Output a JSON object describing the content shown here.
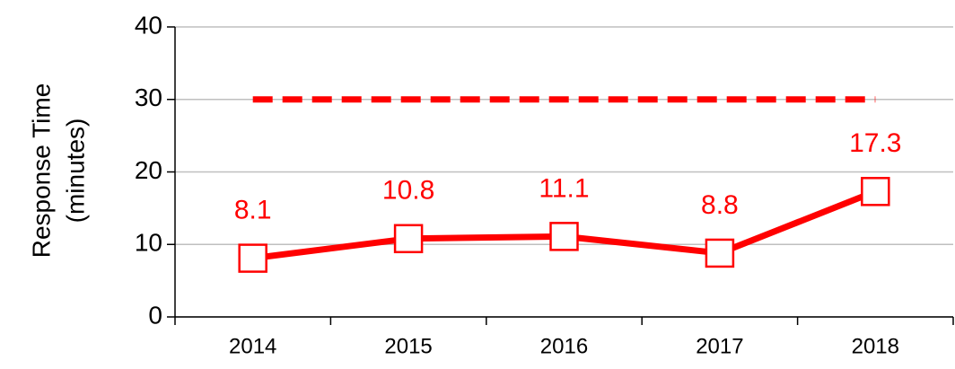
{
  "chart_data": {
    "type": "line",
    "ylabel": [
      "Response Time",
      "(minutes)"
    ],
    "categories": [
      "2014",
      "2015",
      "2016",
      "2017",
      "2018"
    ],
    "series": [
      {
        "color": "#ff0000",
        "values": [
          8.1,
          10.8,
          11.1,
          8.8,
          17.3
        ],
        "marker": "square",
        "data_labels": true
      },
      {
        "color": "#ff0000",
        "values": [
          30,
          30,
          30,
          30,
          30
        ],
        "dashed": true
      }
    ],
    "ylim": [
      0,
      40
    ],
    "yticks": [
      0,
      10,
      20,
      30,
      40
    ],
    "grid": true
  }
}
